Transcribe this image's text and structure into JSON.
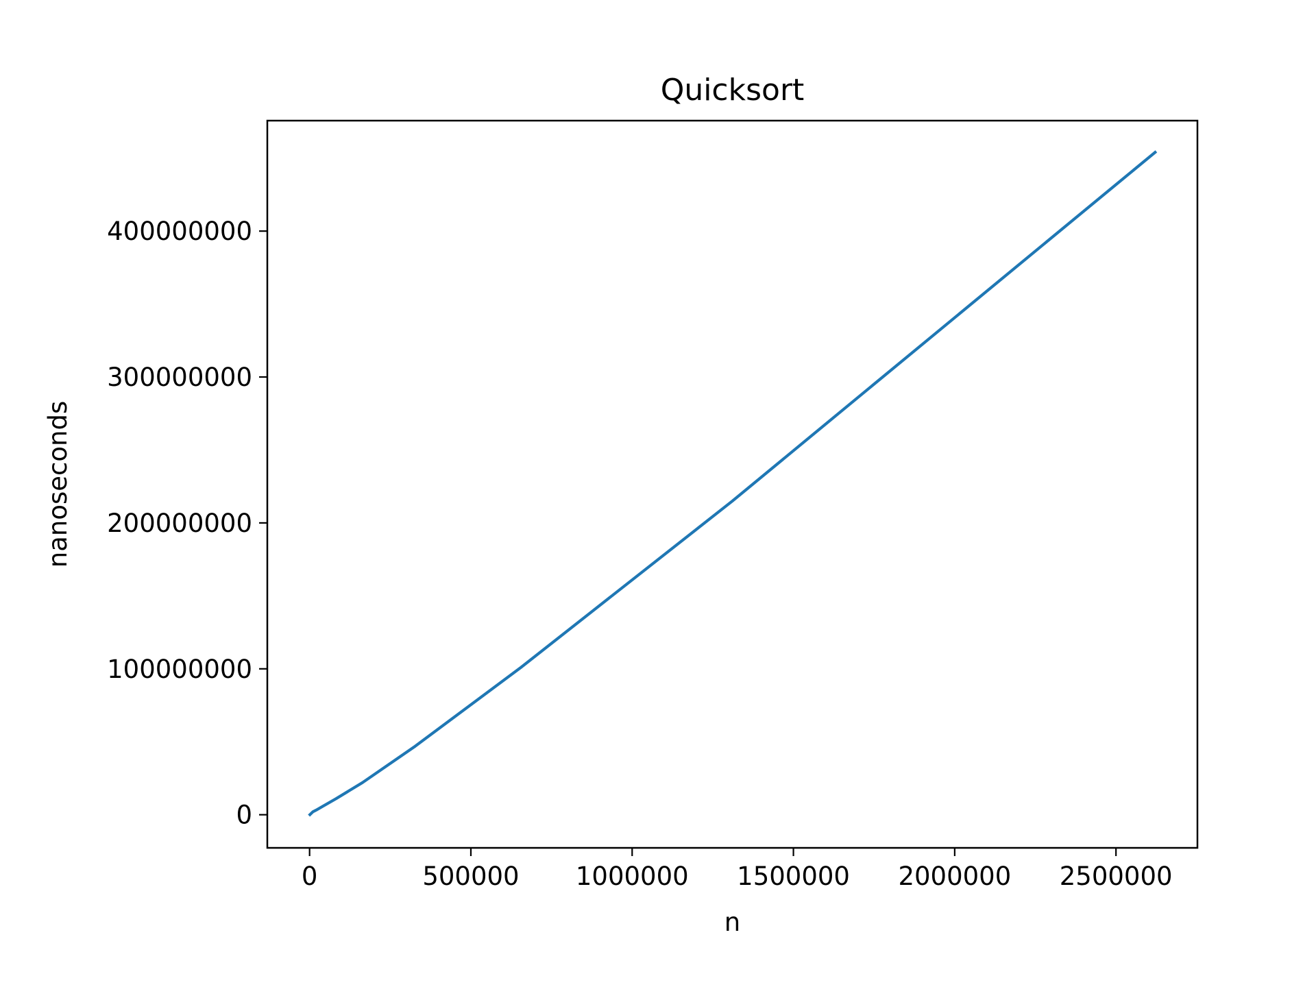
{
  "chart_data": {
    "type": "line",
    "title": "Quicksort",
    "xlabel": "n",
    "ylabel": "nanoseconds",
    "xlim": [
      -131072,
      2752512
    ],
    "ylim": [
      -22700000,
      475700000
    ],
    "x_ticks": [
      0,
      500000,
      1000000,
      1500000,
      2000000,
      2500000
    ],
    "x_tick_labels": [
      "0",
      "500000",
      "1000000",
      "1500000",
      "2000000",
      "2500000"
    ],
    "y_ticks": [
      0,
      100000000,
      200000000,
      300000000,
      400000000
    ],
    "y_tick_labels": [
      "0",
      "100000000",
      "200000000",
      "300000000",
      "400000000"
    ],
    "grid": false,
    "legend": "none",
    "series": [
      {
        "color": "#1f77b4",
        "x": [
          1024,
          10240,
          20480,
          40960,
          81920,
          163840,
          327680,
          655360,
          1310720,
          2621440
        ],
        "y": [
          100000,
          2000000,
          3200000,
          5800000,
          11000000,
          22000000,
          47000000,
          101000000,
          215000000,
          454000000
        ]
      }
    ]
  }
}
